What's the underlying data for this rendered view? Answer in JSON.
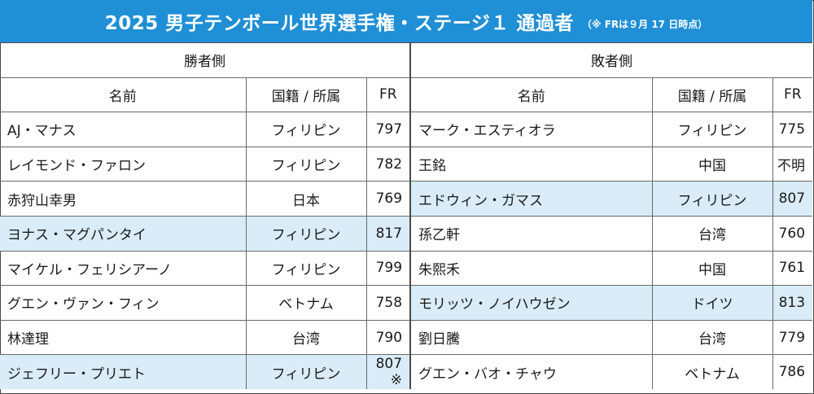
{
  "title": "2025 男子テンボール世界選手権・ステージ１ 通過者",
  "title_note": "（※ FRは９月 17 日時点）",
  "winners_header": "勝者側",
  "losers_header": "敗者側",
  "columns": {
    "name": "名前",
    "country": "国籍 / 所属",
    "fr": "FR"
  },
  "rows": [
    {
      "w_name": "AJ・マナス",
      "w_country": "フィリピン",
      "w_fr": "797",
      "w_hl": false,
      "l_name": "マーク・エスティオラ",
      "l_country": "フィリピン",
      "l_fr": "775",
      "l_hl": false
    },
    {
      "w_name": "レイモンド・ファロン",
      "w_country": "フィリピン",
      "w_fr": "782",
      "w_hl": false,
      "l_name": "王銘",
      "l_country": "中国",
      "l_fr": "不明",
      "l_hl": false
    },
    {
      "w_name": "赤狩山幸男",
      "w_country": "日本",
      "w_fr": "769",
      "w_hl": false,
      "l_name": "エドウィン・ガマス",
      "l_country": "フィリピン",
      "l_fr": "807",
      "l_hl": true
    },
    {
      "w_name": "ヨナス・マグパンタイ",
      "w_country": "フィリピン",
      "w_fr": "817",
      "w_hl": true,
      "l_name": "孫乙軒",
      "l_country": "台湾",
      "l_fr": "760",
      "l_hl": false
    },
    {
      "w_name": "マイケル・フェリシアーノ",
      "w_country": "フィリピン",
      "w_fr": "799",
      "w_hl": false,
      "l_name": "朱熙禾",
      "l_country": "中国",
      "l_fr": "761",
      "l_hl": false
    },
    {
      "w_name": "グエン・ヴァン・フィン",
      "w_country": "ベトナム",
      "w_fr": "758",
      "w_hl": false,
      "l_name": "モリッツ・ノイハウゼン",
      "l_country": "ドイツ",
      "l_fr": "813",
      "l_hl": true
    },
    {
      "w_name": "林達理",
      "w_country": "台湾",
      "w_fr": "790",
      "w_hl": false,
      "l_name": "劉日騰",
      "l_country": "台湾",
      "l_fr": "779",
      "l_hl": false
    },
    {
      "w_name": "ジェフリー・プリエト",
      "w_country": "フィリピン",
      "w_fr": "807 ※",
      "w_hl": true,
      "l_name": "グエン・バオ・チャウ",
      "l_country": "ベトナム",
      "l_fr": "786",
      "l_hl": false
    }
  ]
}
